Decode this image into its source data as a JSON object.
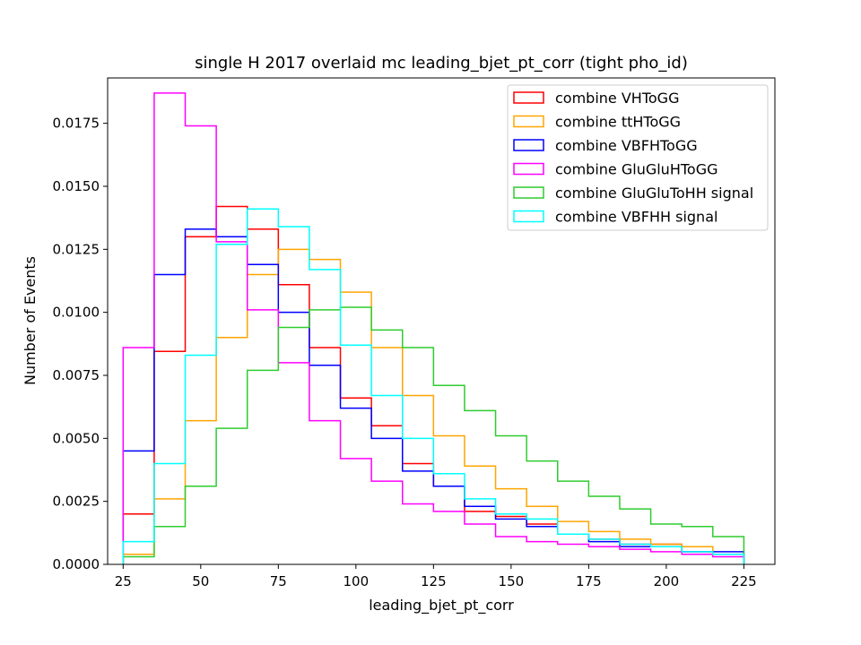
{
  "chart_data": {
    "type": "histogram",
    "title": "single H 2017 overlaid mc leading_bjet_pt_corr (tight pho_id)",
    "xlabel": "leading_bjet_pt_corr",
    "ylabel": "Number of Events",
    "xlim": [
      20,
      235
    ],
    "ylim": [
      0,
      0.0193
    ],
    "xticks": [
      25,
      50,
      75,
      100,
      125,
      150,
      175,
      200,
      225
    ],
    "xtick_labels": [
      "25",
      "50",
      "75",
      "100",
      "125",
      "150",
      "175",
      "200",
      "225"
    ],
    "yticks": [
      0,
      0.0025,
      0.005,
      0.0075,
      0.01,
      0.0125,
      0.015,
      0.0175
    ],
    "ytick_labels": [
      "0.0000",
      "0.0025",
      "0.0050",
      "0.0075",
      "0.0100",
      "0.0125",
      "0.0150",
      "0.0175"
    ],
    "bin_edges": [
      25,
      35,
      45,
      55,
      65,
      75,
      85,
      95,
      105,
      115,
      125,
      135,
      145,
      155,
      165,
      175,
      185,
      195,
      205,
      215,
      225
    ],
    "legend_position": "top-right",
    "series": [
      {
        "name": "combine VHToGG",
        "color": "#ff0000",
        "values": [
          0.002,
          0.00845,
          0.013,
          0.0142,
          0.0133,
          0.0111,
          0.0086,
          0.0066,
          0.0055,
          0.004,
          0.0031,
          0.0021,
          0.0019,
          0.0016,
          0.0012,
          0.001,
          0.0008,
          0.0008,
          0.0005,
          0.0004
        ]
      },
      {
        "name": "combine ttHToGG",
        "color": "#ffa500",
        "values": [
          0.0004,
          0.0026,
          0.0057,
          0.009,
          0.0115,
          0.0125,
          0.0121,
          0.0108,
          0.0086,
          0.0067,
          0.0051,
          0.0039,
          0.003,
          0.0023,
          0.0017,
          0.0013,
          0.001,
          0.0008,
          0.0007,
          0.0004
        ]
      },
      {
        "name": "combine VBFHToGG",
        "color": "#0000ff",
        "values": [
          0.0045,
          0.0115,
          0.0133,
          0.013,
          0.0119,
          0.01,
          0.0079,
          0.0062,
          0.005,
          0.0037,
          0.0031,
          0.0023,
          0.0018,
          0.0015,
          0.0012,
          0.0009,
          0.0007,
          0.0007,
          0.0005,
          0.0005
        ]
      },
      {
        "name": "combine GluGluHToGG",
        "color": "#ff00ff",
        "values": [
          0.0086,
          0.0187,
          0.0174,
          0.0128,
          0.0101,
          0.008,
          0.0057,
          0.0042,
          0.0033,
          0.0024,
          0.0021,
          0.0016,
          0.0011,
          0.0009,
          0.0008,
          0.0007,
          0.0006,
          0.0005,
          0.0004,
          0.0003
        ]
      },
      {
        "name": "combine GluGluToHH signal",
        "color": "#2ecc2e",
        "values": [
          0.0003,
          0.0015,
          0.0031,
          0.0054,
          0.0077,
          0.0094,
          0.0101,
          0.0102,
          0.0093,
          0.0086,
          0.0071,
          0.0061,
          0.0051,
          0.0041,
          0.0033,
          0.0027,
          0.0022,
          0.0016,
          0.0015,
          0.0011
        ]
      },
      {
        "name": "combine VBFHH signal",
        "color": "#00ffff",
        "values": [
          0.0009,
          0.004,
          0.0083,
          0.0127,
          0.0141,
          0.0134,
          0.0117,
          0.0087,
          0.0067,
          0.005,
          0.0036,
          0.0026,
          0.002,
          0.0018,
          0.0012,
          0.001,
          0.0008,
          0.0007,
          0.0005,
          0.0004
        ]
      }
    ]
  }
}
